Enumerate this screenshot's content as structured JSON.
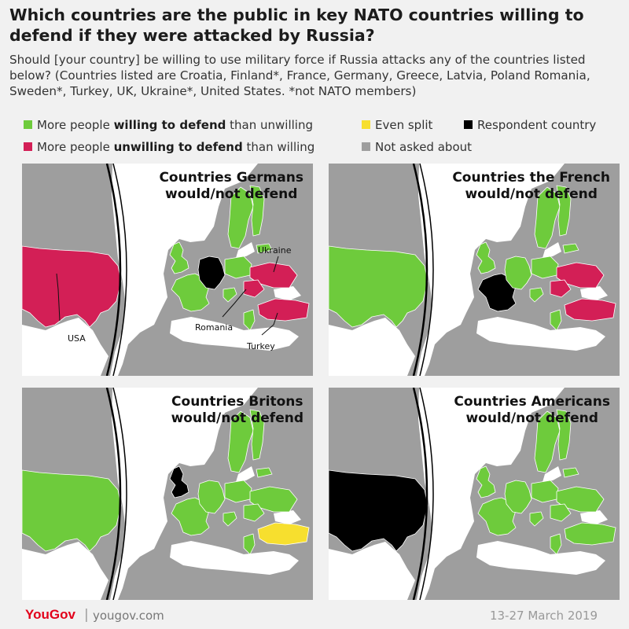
{
  "title": "Which countries are the public in key NATO countries willing to defend if they were attacked by Russia?",
  "subtitle": "Should [your country] be willing to use military force if Russia attacks any of the countries listed below? (Countries listed are Croatia, Finland*, France, Germany, Greece, Latvia, Poland Romania, Sweden*, Turkey, UK, Ukraine*, United States.   *not NATO members)",
  "colors": {
    "willing": "#6ecb3c",
    "unwilling": "#d31f56",
    "even": "#f7df2e",
    "respondent": "#000000",
    "not_asked": "#9e9e9e",
    "land": "#9e9e9e",
    "sea": "#ffffff"
  },
  "legend": {
    "willing": {
      "pre": "More people ",
      "bold": "willing to defend",
      "post": " than unwilling"
    },
    "unwilling": {
      "pre": "More people ",
      "bold": "unwilling to defend",
      "post": " than willing"
    },
    "even": "Even split",
    "respondent": "Respondent country",
    "not_asked": "Not asked about"
  },
  "panels": [
    {
      "title1": "Countries Germans",
      "title2": "would/not defend",
      "respondent": "Germany",
      "status": {
        "USA": "unwilling",
        "UK": "willing",
        "France": "willing",
        "Germany": "respondent",
        "Sweden": "willing",
        "Finland": "willing",
        "Latvia": "willing",
        "Poland": "willing",
        "Ukraine": "unwilling",
        "Romania": "unwilling",
        "Croatia": "willing",
        "Greece": "willing",
        "Turkey": "unwilling"
      },
      "labels": {
        "ukraine": "Ukraine",
        "usa": "USA",
        "romania": "Romania",
        "turkey": "Turkey"
      }
    },
    {
      "title1": "Countries the French",
      "title2": "would/not defend",
      "respondent": "France",
      "status": {
        "USA": "willing",
        "UK": "willing",
        "France": "respondent",
        "Germany": "willing",
        "Sweden": "willing",
        "Finland": "willing",
        "Latvia": "willing",
        "Poland": "willing",
        "Ukraine": "unwilling",
        "Romania": "unwilling",
        "Croatia": "willing",
        "Greece": "willing",
        "Turkey": "unwilling"
      }
    },
    {
      "title1": "Countries Britons",
      "title2": "would/not defend",
      "respondent": "UK",
      "status": {
        "USA": "willing",
        "UK": "respondent",
        "France": "willing",
        "Germany": "willing",
        "Sweden": "willing",
        "Finland": "willing",
        "Latvia": "willing",
        "Poland": "willing",
        "Ukraine": "willing",
        "Romania": "willing",
        "Croatia": "willing",
        "Greece": "willing",
        "Turkey": "even"
      }
    },
    {
      "title1": "Countries Americans",
      "title2": "would/not defend",
      "respondent": "USA",
      "status": {
        "USA": "respondent",
        "UK": "willing",
        "France": "willing",
        "Germany": "willing",
        "Sweden": "willing",
        "Finland": "willing",
        "Latvia": "willing",
        "Poland": "willing",
        "Ukraine": "willing",
        "Romania": "willing",
        "Croatia": "willing",
        "Greece": "willing",
        "Turkey": "willing"
      }
    }
  ],
  "footer": {
    "brand": "YouGov",
    "site": "yougov.com",
    "date": "13-27 March 2019"
  }
}
